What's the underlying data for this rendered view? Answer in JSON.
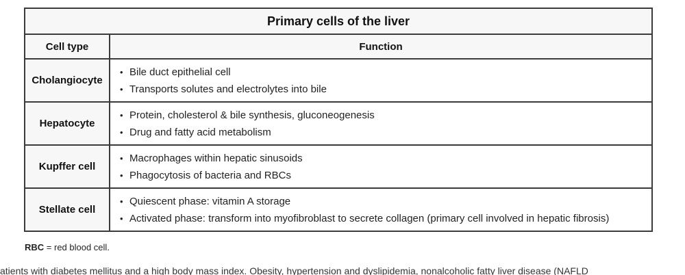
{
  "table": {
    "title": "Primary cells of the liver",
    "headers": {
      "cell_type": "Cell type",
      "function": "Function"
    },
    "rows": [
      {
        "cell_type": "Cholangiocyte",
        "functions": [
          "Bile duct epithelial cell",
          "Transports solutes and electrolytes into bile"
        ]
      },
      {
        "cell_type": "Hepatocyte",
        "functions": [
          "Protein, cholesterol & bile synthesis, gluconeogenesis",
          "Drug and fatty acid metabolism"
        ]
      },
      {
        "cell_type": "Kupffer cell",
        "functions": [
          "Macrophages within hepatic sinusoids",
          "Phagocytosis of bacteria and RBCs"
        ]
      },
      {
        "cell_type": "Stellate cell",
        "functions": [
          "Quiescent phase: vitamin A storage",
          "Activated phase: transform into myofibroblast to secrete collagen (primary cell involved in hepatic fibrosis)"
        ]
      }
    ]
  },
  "footnote": {
    "abbr": "RBC",
    "text": " = red blood cell."
  },
  "cutoff_text": "atients with diabetes mellitus and a high body mass index. Obesity, hypertension and dyslipidemia, nonalcoholic fatty liver disease (NAFLD"
}
